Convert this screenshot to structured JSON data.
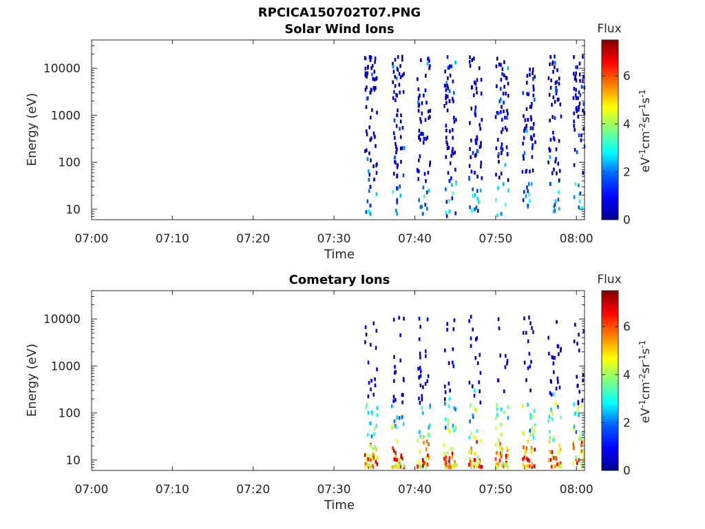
{
  "figure": {
    "title": "RPCICA150702T07.PNG"
  },
  "colors": {
    "axis": "#262626",
    "colormap": [
      "#00008f",
      "#0000ff",
      "#0080ff",
      "#00ffff",
      "#80ff80",
      "#ffff00",
      "#ff8000",
      "#ff0000",
      "#800000"
    ]
  },
  "chart_data": [
    {
      "type": "heatmap",
      "title": "Solar Wind Ions",
      "xlabel": "Time",
      "ylabel": "Energy (eV)",
      "x_ticks": [
        "07:00",
        "07:10",
        "07:20",
        "07:30",
        "07:40",
        "07:50",
        "08:00"
      ],
      "xlim": [
        "07:00",
        "08:01"
      ],
      "y_scale": "log",
      "y_ticks": [
        "10",
        "100",
        "1000",
        "10000"
      ],
      "ylim": [
        6,
        40000
      ],
      "colorbar": {
        "label": "Flux",
        "unit": "eV-1cm-2sr-1s-1",
        "ticks": [
          "0",
          "2",
          "4",
          "6"
        ],
        "range": [
          0,
          7.5
        ]
      },
      "data_start": "07:32",
      "burst_centers_min": [
        34.5,
        37.8,
        41.0,
        44.3,
        47.4,
        50.7,
        54.0,
        57.2,
        60.3
      ],
      "cells": [
        {
          "t": 34.5,
          "e": 8,
          "v": 2.2
        },
        {
          "t": 34.5,
          "e": 12,
          "v": 1.4
        },
        {
          "t": 34.5,
          "e": 30,
          "v": 0.6
        },
        {
          "t": 34.5,
          "e": 300,
          "v": 0.5
        },
        {
          "t": 34.5,
          "e": 3000,
          "v": 0.4
        },
        {
          "t": 34.5,
          "e": 15000,
          "v": 0.3
        },
        {
          "t": 37.8,
          "e": 8,
          "v": 2.3
        },
        {
          "t": 37.8,
          "e": 14,
          "v": 1.5
        },
        {
          "t": 37.8,
          "e": 50,
          "v": 0.7
        },
        {
          "t": 37.8,
          "e": 1000,
          "v": 0.4
        },
        {
          "t": 41.0,
          "e": 8,
          "v": 1.8
        },
        {
          "t": 41.0,
          "e": 400,
          "v": 0.5
        },
        {
          "t": 44.3,
          "e": 9,
          "v": 2.5
        },
        {
          "t": 44.3,
          "e": 40,
          "v": 1.2
        },
        {
          "t": 44.3,
          "e": 2000,
          "v": 0.4
        },
        {
          "t": 47.4,
          "e": 10,
          "v": 2.0
        },
        {
          "t": 47.4,
          "e": 60,
          "v": 1.0
        },
        {
          "t": 47.4,
          "e": 5000,
          "v": 0.3
        },
        {
          "t": 50.7,
          "e": 8,
          "v": 2.1
        },
        {
          "t": 50.7,
          "e": 200,
          "v": 0.6
        },
        {
          "t": 54.0,
          "e": 12,
          "v": 1.7
        },
        {
          "t": 54.0,
          "e": 800,
          "v": 0.4
        },
        {
          "t": 57.2,
          "e": 9,
          "v": 2.4
        },
        {
          "t": 57.2,
          "e": 70,
          "v": 1.1
        },
        {
          "t": 60.3,
          "e": 11,
          "v": 1.9
        },
        {
          "t": 60.3,
          "e": 1500,
          "v": 0.4
        }
      ]
    },
    {
      "type": "heatmap",
      "title": "Cometary Ions",
      "xlabel": "Time",
      "ylabel": "Energy (eV)",
      "x_ticks": [
        "07:00",
        "07:10",
        "07:20",
        "07:30",
        "07:40",
        "07:50",
        "08:00"
      ],
      "xlim": [
        "07:00",
        "08:01"
      ],
      "y_scale": "log",
      "y_ticks": [
        "10",
        "100",
        "1000",
        "10000"
      ],
      "ylim": [
        6,
        40000
      ],
      "colorbar": {
        "label": "Flux",
        "unit": "eV-1cm-2sr-1s-1",
        "ticks": [
          "0",
          "2",
          "4",
          "6"
        ],
        "range": [
          0,
          7.5
        ]
      },
      "data_start": "07:32",
      "burst_centers_min": [
        34.5,
        37.8,
        41.0,
        44.3,
        47.4,
        50.7,
        54.0,
        57.2,
        60.3
      ],
      "cells": [
        {
          "t": 34.5,
          "e": 10,
          "v": 6.0
        },
        {
          "t": 34.5,
          "e": 20,
          "v": 4.2
        },
        {
          "t": 34.5,
          "e": 60,
          "v": 2.4
        },
        {
          "t": 37.8,
          "e": 10,
          "v": 6.5
        },
        {
          "t": 37.8,
          "e": 25,
          "v": 4.5
        },
        {
          "t": 37.8,
          "e": 80,
          "v": 2.6
        },
        {
          "t": 41.0,
          "e": 10,
          "v": 6.8
        },
        {
          "t": 41.0,
          "e": 30,
          "v": 4.8
        },
        {
          "t": 41.0,
          "e": 100,
          "v": 2.5
        },
        {
          "t": 44.3,
          "e": 11,
          "v": 6.2
        },
        {
          "t": 44.3,
          "e": 40,
          "v": 4.4
        },
        {
          "t": 44.3,
          "e": 200,
          "v": 2.8
        },
        {
          "t": 47.4,
          "e": 10,
          "v": 6.6
        },
        {
          "t": 47.4,
          "e": 30,
          "v": 4.6
        },
        {
          "t": 47.4,
          "e": 300,
          "v": 3.0
        },
        {
          "t": 50.7,
          "e": 12,
          "v": 5.9
        },
        {
          "t": 50.7,
          "e": 35,
          "v": 4.3
        },
        {
          "t": 50.7,
          "e": 120,
          "v": 2.7
        },
        {
          "t": 54.0,
          "e": 10,
          "v": 7.0
        },
        {
          "t": 54.0,
          "e": 25,
          "v": 4.9
        },
        {
          "t": 54.0,
          "e": 150,
          "v": 2.6
        },
        {
          "t": 57.2,
          "e": 11,
          "v": 6.3
        },
        {
          "t": 57.2,
          "e": 30,
          "v": 4.5
        },
        {
          "t": 57.2,
          "e": 250,
          "v": 2.9
        },
        {
          "t": 60.3,
          "e": 10,
          "v": 6.1
        },
        {
          "t": 60.3,
          "e": 28,
          "v": 4.2
        },
        {
          "t": 60.3,
          "e": 90,
          "v": 2.5
        }
      ]
    }
  ]
}
